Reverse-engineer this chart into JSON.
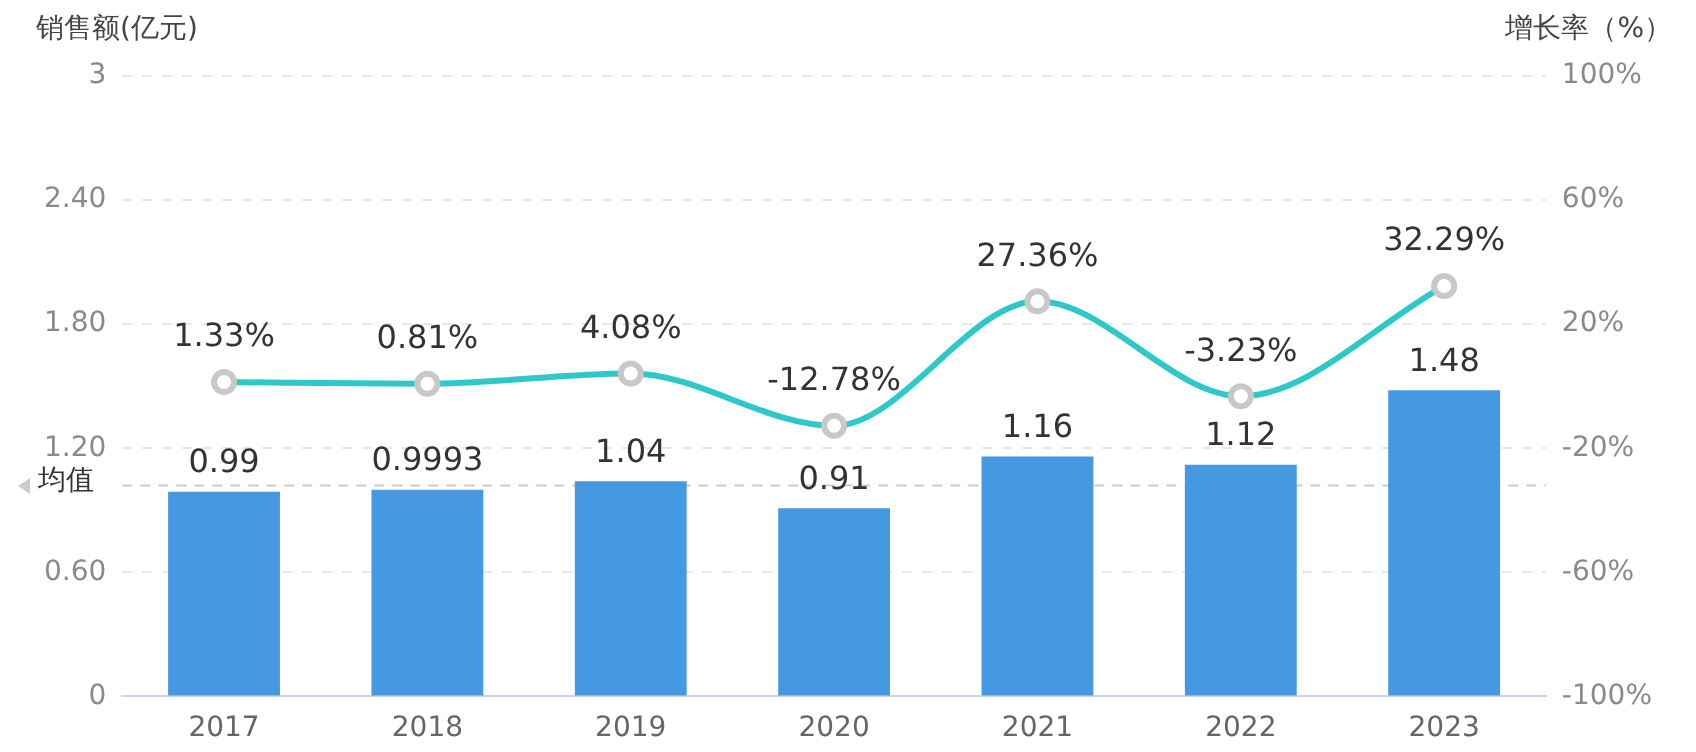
{
  "chart_data": {
    "type": "bar",
    "ylabel": "销售额(亿元)",
    "y2label": "增长率（%）",
    "categories": [
      "2017",
      "2018",
      "2019",
      "2020",
      "2021",
      "2022",
      "2023"
    ],
    "series": [
      {
        "color": "#4599e0",
        "values": [
          0.99,
          0.9993,
          1.04,
          0.91,
          1.16,
          1.12,
          1.48
        ],
        "value_labels": [
          "0.99",
          "0.9993",
          "1.04",
          "0.91",
          "1.16",
          "1.12",
          "1.48"
        ]
      },
      {
        "type": "line",
        "axis": "y2",
        "color": "#2ec8c8",
        "values": [
          1.33,
          0.81,
          4.08,
          -12.78,
          27.36,
          -3.23,
          32.29
        ],
        "value_labels": [
          "1.33%",
          "0.81%",
          "4.08%",
          "-12.78%",
          "27.36%",
          "-3.23%",
          "32.29%"
        ]
      }
    ],
    "ylim": [
      0,
      3
    ],
    "yticks": [
      0,
      {
        "value": 0.6,
        "label": "0.60"
      },
      {
        "value": 1.2,
        "label": "1.20"
      },
      {
        "value": 1.8,
        "label": "1.80"
      },
      {
        "value": 2.4,
        "label": "2.40"
      },
      3
    ],
    "y2lim": [
      -100,
      100
    ],
    "y2ticks": [
      {
        "value": -100,
        "label": "-100%"
      },
      {
        "value": -60,
        "label": "-60%"
      },
      {
        "value": -20,
        "label": "-20%"
      },
      {
        "value": 20,
        "label": "20%"
      },
      {
        "value": 60,
        "label": "60%"
      },
      {
        "value": 100,
        "label": "100%"
      }
    ],
    "ref_lines": [
      {
        "axis": "y",
        "value": 1.02,
        "label": "均值",
        "color": "#cccccc",
        "line_style": "dashed"
      }
    ],
    "grid": "y",
    "legend": false,
    "marker": "circle",
    "line_style": "solid"
  }
}
